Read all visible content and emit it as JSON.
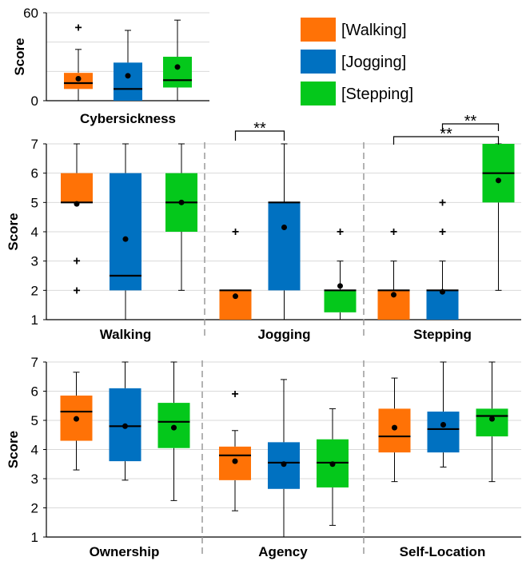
{
  "colors": {
    "walking": "#ff7206",
    "jogging": "#0071c1",
    "stepping": "#04c81b"
  },
  "legend": [
    {
      "label": "[Walking]",
      "color": "#ff7206"
    },
    {
      "label": "[Jogging]",
      "color": "#0071c1"
    },
    {
      "label": "[Stepping]",
      "color": "#04c81b"
    }
  ],
  "chart_data": [
    {
      "type": "box",
      "ylabel": "Score",
      "ylim": [
        0,
        60
      ],
      "yticks": [
        0,
        60
      ],
      "grid": "horizontal",
      "groups": [
        {
          "label": "Cybersickness",
          "boxes": [
            {
              "series": "[Walking]",
              "whislo": 0,
              "q1": 8,
              "median": 12,
              "q3": 19,
              "whishi": 35,
              "mean": 15,
              "outliers": [
                50
              ]
            },
            {
              "series": "[Jogging]",
              "whislo": 0,
              "q1": 0,
              "median": 8,
              "q3": 26,
              "whishi": 48,
              "mean": 17,
              "outliers": []
            },
            {
              "series": "[Stepping]",
              "whislo": 0,
              "q1": 9,
              "median": 14,
              "q3": 30,
              "whishi": 55,
              "mean": 23,
              "outliers": []
            }
          ]
        }
      ]
    },
    {
      "type": "box",
      "ylabel": "Score",
      "ylim": [
        1,
        7
      ],
      "yticks": [
        1,
        2,
        3,
        4,
        5,
        6,
        7
      ],
      "grid": "horizontal",
      "groups": [
        {
          "label": "Walking",
          "boxes": [
            {
              "series": "[Walking]",
              "whislo": 5,
              "q1": 5,
              "median": 5,
              "q3": 6,
              "whishi": 7,
              "mean": 4.95,
              "outliers": [
                3,
                2
              ]
            },
            {
              "series": "[Jogging]",
              "whislo": 1,
              "q1": 2,
              "median": 2.5,
              "q3": 6,
              "whishi": 7,
              "mean": 3.75,
              "outliers": []
            },
            {
              "series": "[Stepping]",
              "whislo": 2,
              "q1": 4,
              "median": 5,
              "q3": 6,
              "whishi": 7,
              "mean": 5,
              "outliers": []
            }
          ]
        },
        {
          "label": "Jogging",
          "boxes": [
            {
              "series": "[Walking]",
              "whislo": 1,
              "q1": 1,
              "median": 2,
              "q3": 2,
              "whishi": 2,
              "mean": 1.8,
              "outliers": [
                4
              ]
            },
            {
              "series": "[Jogging]",
              "whislo": 1,
              "q1": 2,
              "median": 5,
              "q3": 5,
              "whishi": 7,
              "mean": 4.15,
              "outliers": []
            },
            {
              "series": "[Stepping]",
              "whislo": 1,
              "q1": 1.25,
              "median": 2,
              "q3": 2,
              "whishi": 3,
              "mean": 2.15,
              "outliers": [
                4
              ]
            }
          ]
        },
        {
          "label": "Stepping",
          "boxes": [
            {
              "series": "[Walking]",
              "whislo": 1,
              "q1": 1,
              "median": 2,
              "q3": 2,
              "whishi": 3,
              "mean": 1.85,
              "outliers": [
                4
              ]
            },
            {
              "series": "[Jogging]",
              "whislo": 1,
              "q1": 1,
              "median": 2,
              "q3": 2,
              "whishi": 3,
              "mean": 1.95,
              "outliers": [
                4,
                5
              ]
            },
            {
              "series": "[Stepping]",
              "whislo": 2,
              "q1": 5,
              "median": 6,
              "q3": 7,
              "whishi": 7,
              "mean": 5.75,
              "outliers": []
            }
          ]
        }
      ],
      "significance": [
        {
          "group": "Jogging",
          "from": "[Walking]",
          "to": "[Jogging]",
          "label": "**"
        },
        {
          "group": "Stepping",
          "from": "[Walking]",
          "to": "[Stepping]",
          "label": "**"
        },
        {
          "group": "Stepping",
          "from": "[Jogging]",
          "to": "[Stepping]",
          "label": "**"
        }
      ]
    },
    {
      "type": "box",
      "ylabel": "Score",
      "ylim": [
        1,
        7
      ],
      "yticks": [
        1,
        2,
        3,
        4,
        5,
        6,
        7
      ],
      "grid": "horizontal",
      "groups": [
        {
          "label": "Ownership",
          "boxes": [
            {
              "series": "[Walking]",
              "whislo": 3.3,
              "q1": 4.3,
              "median": 5.3,
              "q3": 5.85,
              "whishi": 6.65,
              "mean": 5.05,
              "outliers": []
            },
            {
              "series": "[Jogging]",
              "whislo": 2.95,
              "q1": 3.6,
              "median": 4.8,
              "q3": 6.1,
              "whishi": 7,
              "mean": 4.8,
              "outliers": []
            },
            {
              "series": "[Stepping]",
              "whislo": 2.25,
              "q1": 4.05,
              "median": 4.95,
              "q3": 5.6,
              "whishi": 7,
              "mean": 4.75,
              "outliers": []
            }
          ]
        },
        {
          "label": "Agency",
          "boxes": [
            {
              "series": "[Walking]",
              "whislo": 1.9,
              "q1": 2.95,
              "median": 3.8,
              "q3": 4.1,
              "whishi": 4.65,
              "mean": 3.6,
              "outliers": [
                5.9
              ]
            },
            {
              "series": "[Jogging]",
              "whislo": 1,
              "q1": 2.65,
              "median": 3.55,
              "q3": 4.25,
              "whishi": 6.4,
              "mean": 3.5,
              "outliers": []
            },
            {
              "series": "[Stepping]",
              "whislo": 1.4,
              "q1": 2.7,
              "median": 3.55,
              "q3": 4.35,
              "whishi": 5.4,
              "mean": 3.5,
              "outliers": []
            }
          ]
        },
        {
          "label": "Self-Location",
          "boxes": [
            {
              "series": "[Walking]",
              "whislo": 2.9,
              "q1": 3.9,
              "median": 4.45,
              "q3": 5.4,
              "whishi": 6.45,
              "mean": 4.75,
              "outliers": []
            },
            {
              "series": "[Jogging]",
              "whislo": 3.4,
              "q1": 3.9,
              "median": 4.7,
              "q3": 5.3,
              "whishi": 7,
              "mean": 4.85,
              "outliers": []
            },
            {
              "series": "[Stepping]",
              "whislo": 2.9,
              "q1": 4.45,
              "median": 5.15,
              "q3": 5.4,
              "whishi": 7,
              "mean": 5.05,
              "outliers": []
            }
          ]
        }
      ]
    }
  ]
}
